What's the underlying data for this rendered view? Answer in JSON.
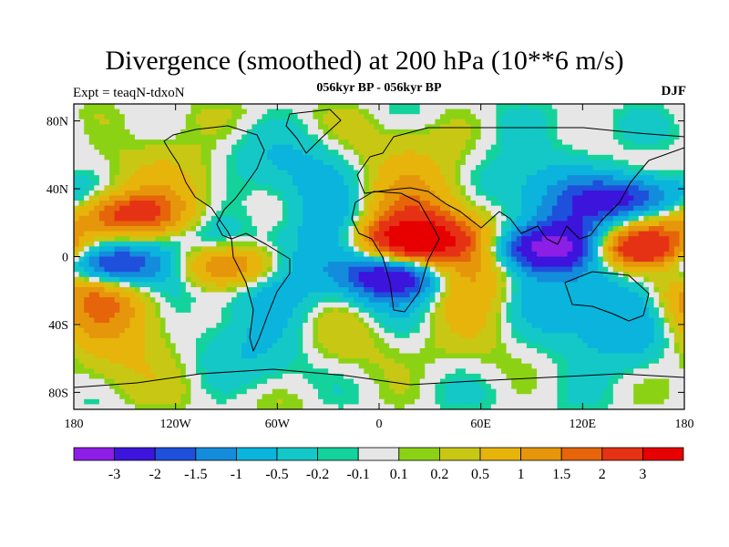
{
  "title": "Divergence (smoothed) at 200 hPa (10**6 m/s)",
  "subtitle_left": "Expt = teaqN-tdxoN",
  "subtitle_center": "056kyr BP - 056kyr BP",
  "subtitle_right": "DJF",
  "lat_labels": [
    "80N",
    "40N",
    "0",
    "40S",
    "80S"
  ],
  "lat_values": [
    80,
    40,
    0,
    -40,
    -80
  ],
  "lon_labels": [
    "180",
    "120W",
    "60W",
    "0",
    "60E",
    "120E",
    "180"
  ],
  "lon_values": [
    -180,
    -120,
    -60,
    0,
    60,
    120,
    180
  ],
  "colorbar": {
    "labels": [
      "-3",
      "-2",
      "-1.5",
      "-1",
      "-0.5",
      "-0.2",
      "-0.1",
      "0.1",
      "0.2",
      "0.5",
      "1",
      "1.5",
      "2",
      "3"
    ],
    "colors": [
      "#8c1ee6",
      "#3c14dc",
      "#1e50dc",
      "#148cdc",
      "#0ab4dc",
      "#14c8c8",
      "#14d29b",
      "#e6e6e6",
      "#8cd214",
      "#c8c814",
      "#e6b40a",
      "#e6960a",
      "#e6640a",
      "#e63214",
      "#e60000"
    ]
  },
  "chart_data": {
    "type": "heatmap",
    "title": "Divergence (smoothed) at 200 hPa (10**6 m/s)",
    "projection": "cylindrical equidistant",
    "lon_range": [
      -180,
      180
    ],
    "lat_range": [
      -90,
      90
    ],
    "levels": [
      -3,
      -2,
      -1.5,
      -1,
      -0.5,
      -0.2,
      -0.1,
      0.1,
      0.2,
      0.5,
      1,
      1.5,
      2,
      3
    ],
    "features": [
      {
        "lon": 20,
        "lat": 10,
        "sign": 1,
        "amp": 3.0,
        "desc": "strong divergence over N Africa / tropical Atlantic"
      },
      {
        "lon": 150,
        "lat": 5,
        "sign": 1,
        "amp": 3.0,
        "desc": "strong divergence over western Pacific warm pool"
      },
      {
        "lon": -150,
        "lat": 25,
        "sign": 1,
        "amp": 2.5,
        "desc": "divergence over subtropical N Pacific"
      },
      {
        "lon": -90,
        "lat": -5,
        "sign": 1,
        "amp": 2.0,
        "desc": "divergence over S America"
      },
      {
        "lon": -160,
        "lat": -5,
        "sign": -1,
        "amp": 3.0,
        "desc": "convergence over central equatorial Pacific"
      },
      {
        "lon": 100,
        "lat": 5,
        "sign": -1,
        "amp": 3.0,
        "desc": "convergence over Indian Ocean / SE Asia"
      },
      {
        "lon": 150,
        "lat": 35,
        "sign": -1,
        "amp": 2.5,
        "desc": "convergence over NW Pacific"
      },
      {
        "lon": 10,
        "lat": -12,
        "sign": -1,
        "amp": 2.5,
        "desc": "convergence over S Atlantic / SW Africa"
      }
    ]
  }
}
